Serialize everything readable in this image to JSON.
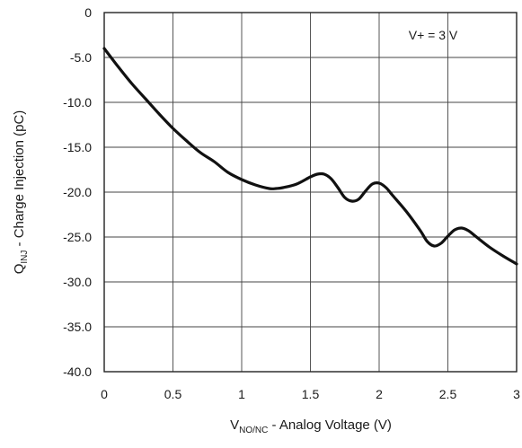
{
  "chart_data": {
    "type": "line",
    "xlabel": {
      "main": "V",
      "subscript": "NO/NC",
      "rest": " - Analog Voltage (V)"
    },
    "ylabel": {
      "main": "Q",
      "subscript": "INJ",
      "rest": " - Charge Injection (pC)"
    },
    "xlim": [
      0,
      3
    ],
    "ylim": [
      -40,
      0
    ],
    "xticks": [
      0,
      0.5,
      1,
      1.5,
      2,
      2.5,
      3
    ],
    "xtick_labels": [
      "0",
      "0.5",
      "1",
      "1.5",
      "2",
      "2.5",
      "3"
    ],
    "yticks": [
      0,
      -5,
      -10,
      -15,
      -20,
      -25,
      -30,
      -35,
      -40
    ],
    "ytick_labels": [
      "0",
      "-5.0",
      "-10.0",
      "-15.0",
      "-20.0",
      "-25.0",
      "-30.0",
      "-35.0",
      "-40.0"
    ],
    "grid": true,
    "annotation": "V+ = 3 V",
    "series": [
      {
        "x": [
          0,
          0.1,
          0.2,
          0.3,
          0.4,
          0.5,
          0.6,
          0.7,
          0.8,
          0.9,
          1.0,
          1.1,
          1.2,
          1.25,
          1.3,
          1.4,
          1.5,
          1.55,
          1.6,
          1.65,
          1.7,
          1.75,
          1.8,
          1.85,
          1.9,
          1.95,
          2.0,
          2.05,
          2.1,
          2.2,
          2.3,
          2.35,
          2.4,
          2.45,
          2.5,
          2.55,
          2.6,
          2.65,
          2.7,
          2.8,
          2.9,
          3.0
        ],
        "y": [
          -4.0,
          -6.0,
          -7.9,
          -9.6,
          -11.3,
          -12.9,
          -14.3,
          -15.6,
          -16.6,
          -17.8,
          -18.6,
          -19.2,
          -19.6,
          -19.6,
          -19.5,
          -19.1,
          -18.3,
          -18.0,
          -18.0,
          -18.5,
          -19.5,
          -20.6,
          -21.0,
          -20.8,
          -19.9,
          -19.1,
          -19.0,
          -19.5,
          -20.4,
          -22.2,
          -24.3,
          -25.5,
          -26.0,
          -25.7,
          -24.9,
          -24.2,
          -24.0,
          -24.3,
          -24.9,
          -26.1,
          -27.1,
          -28.0
        ],
        "color": "#111111"
      }
    ]
  }
}
